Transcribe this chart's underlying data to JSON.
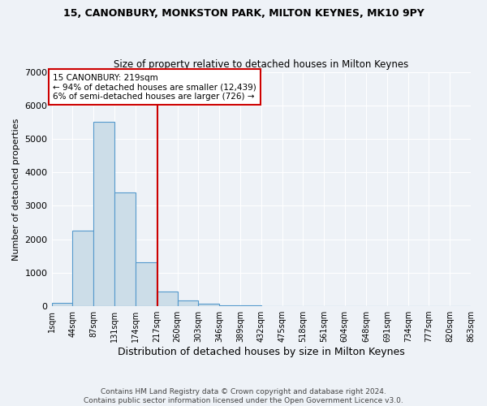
{
  "title1": "15, CANONBURY, MONKSTON PARK, MILTON KEYNES, MK10 9PY",
  "title2": "Size of property relative to detached houses in Milton Keynes",
  "xlabel": "Distribution of detached houses by size in Milton Keynes",
  "ylabel": "Number of detached properties",
  "bin_edges": [
    1,
    44,
    87,
    131,
    174,
    217,
    260,
    303,
    346,
    389,
    432,
    475,
    518,
    561,
    604,
    648,
    691,
    734,
    777,
    820,
    863
  ],
  "bar_heights": [
    100,
    2250,
    5500,
    3400,
    1300,
    430,
    160,
    80,
    30,
    15,
    10,
    5,
    3,
    2,
    2,
    1,
    1,
    1,
    0,
    0
  ],
  "bar_color": "#ccdde8",
  "bar_edge_color": "#5599cc",
  "property_size": 219,
  "vline_color": "#cc0000",
  "annotation_text": "15 CANONBURY: 219sqm\n← 94% of detached houses are smaller (12,439)\n6% of semi-detached houses are larger (726) →",
  "annotation_box_color": "#ffffff",
  "annotation_box_edge_color": "#cc0000",
  "footer1": "Contains HM Land Registry data © Crown copyright and database right 2024.",
  "footer2": "Contains public sector information licensed under the Open Government Licence v3.0.",
  "ylim": [
    0,
    7000
  ],
  "tick_labels": [
    "1sqm",
    "44sqm",
    "87sqm",
    "131sqm",
    "174sqm",
    "217sqm",
    "260sqm",
    "303sqm",
    "346sqm",
    "389sqm",
    "432sqm",
    "475sqm",
    "518sqm",
    "561sqm",
    "604sqm",
    "648sqm",
    "691sqm",
    "734sqm",
    "777sqm",
    "820sqm",
    "863sqm"
  ],
  "background_color": "#eef2f7",
  "grid_color": "#ffffff"
}
